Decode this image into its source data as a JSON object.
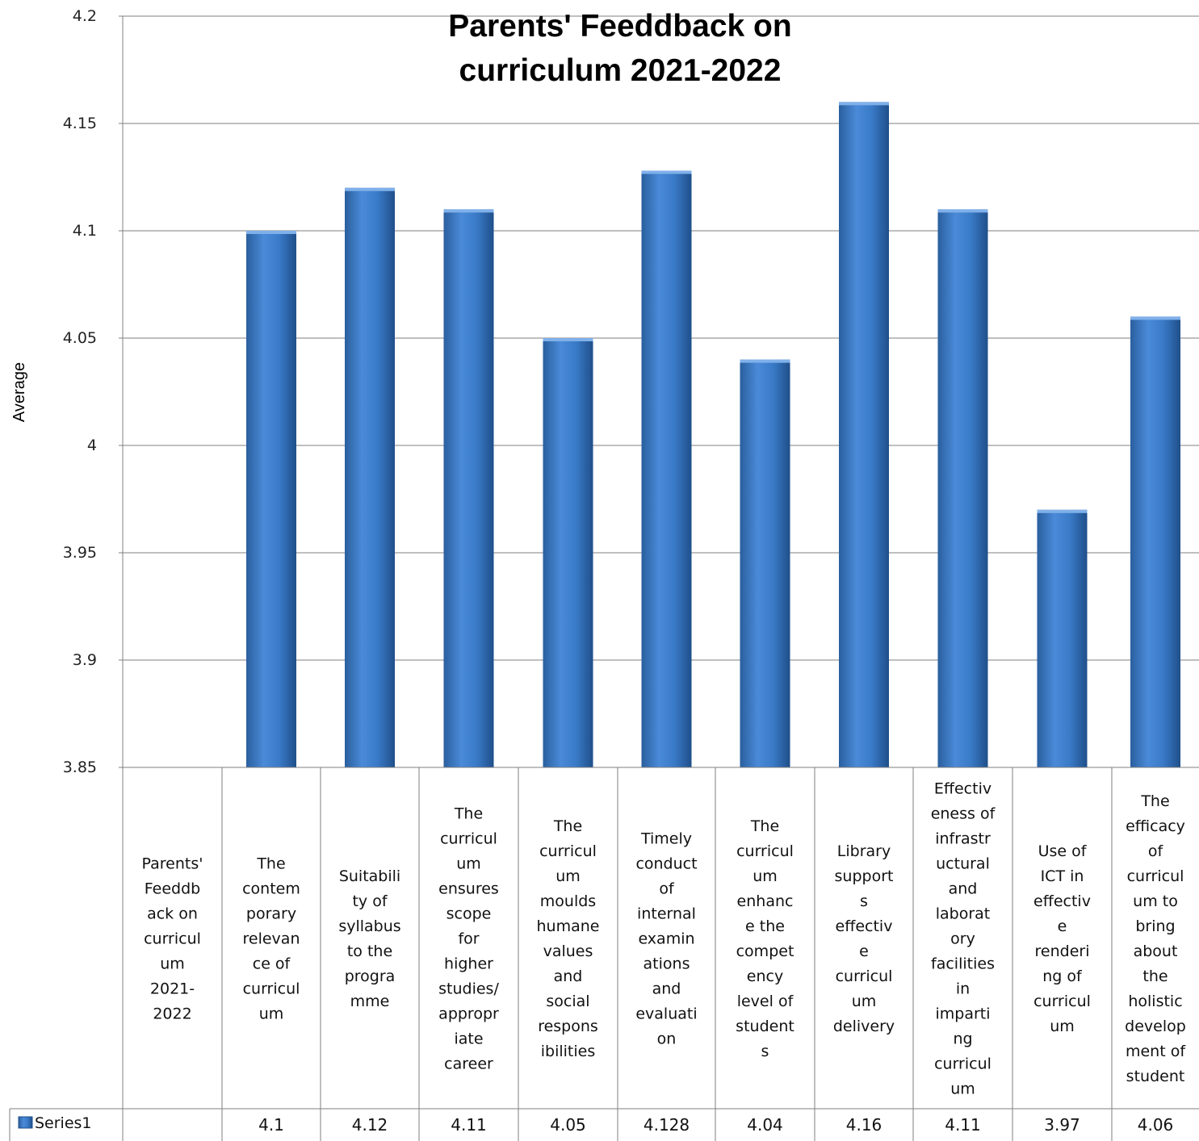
{
  "chart_data": {
    "type": "bar",
    "title_lines": [
      "Parents' Feeddback on",
      "curriculum 2021-2022"
    ],
    "ylabel": "Average",
    "xlabel": "",
    "ylim": [
      3.85,
      4.2
    ],
    "yticks": [
      "3.85",
      "3.9",
      "3.95",
      "4",
      "4.05",
      "4.1",
      "4.15",
      "4.2"
    ],
    "ytick_values": [
      3.85,
      3.9,
      3.95,
      4.0,
      4.05,
      4.1,
      4.15,
      4.2
    ],
    "grid": true,
    "bar_color": "#3a7bc8",
    "categories": [
      [
        "Parents'",
        "Feeddb",
        "ack on",
        "curricul",
        "um",
        "2021-",
        "2022"
      ],
      [
        "The",
        "contem",
        "porary",
        "relevan",
        "ce of",
        "curricul",
        "um"
      ],
      [
        "Suitabili",
        "ty of",
        "syllabus",
        "to the",
        "progra",
        "mme"
      ],
      [
        "The",
        "curricul",
        "um",
        "ensures",
        "scope",
        "for",
        "higher",
        "studies/",
        "appropr",
        "iate",
        "career"
      ],
      [
        "The",
        "curricul",
        "um",
        "moulds",
        "humane",
        "values",
        "and",
        "social",
        "respons",
        "ibilities"
      ],
      [
        "Timely",
        "conduct",
        "of",
        "internal",
        "examin",
        "ations",
        "and",
        "evaluati",
        "on"
      ],
      [
        "The",
        "curricul",
        "um",
        "enhanc",
        "e the",
        "compet",
        "ency",
        "level of",
        "student",
        "s"
      ],
      [
        "Library",
        "support",
        "s",
        "effectiv",
        "e",
        "curricul",
        "um",
        "delivery"
      ],
      [
        "Effectiv",
        "eness of",
        "infrastr",
        "uctural",
        "and",
        "laborat",
        "ory",
        "facilities",
        "in",
        "imparti",
        "ng",
        "curricul",
        "um"
      ],
      [
        "Use of",
        "ICT in",
        "effectiv",
        "e",
        "renderi",
        "ng of",
        "curricul",
        "um"
      ],
      [
        "The",
        "efficacy",
        "of",
        "curricul",
        "um to",
        "bring",
        "about",
        "the",
        "holistic",
        "develop",
        "ment of",
        "student"
      ]
    ],
    "series": [
      {
        "name": "Series1",
        "values": [
          null,
          4.1,
          4.12,
          4.11,
          4.05,
          4.128,
          4.04,
          4.16,
          4.11,
          3.97,
          4.06
        ],
        "labels": [
          "",
          "4.1",
          "4.12",
          "4.11",
          "4.05",
          "4.128",
          "4.04",
          "4.16",
          "4.11",
          "3.97",
          "4.06"
        ]
      }
    ],
    "legend_placement": "data-table"
  }
}
